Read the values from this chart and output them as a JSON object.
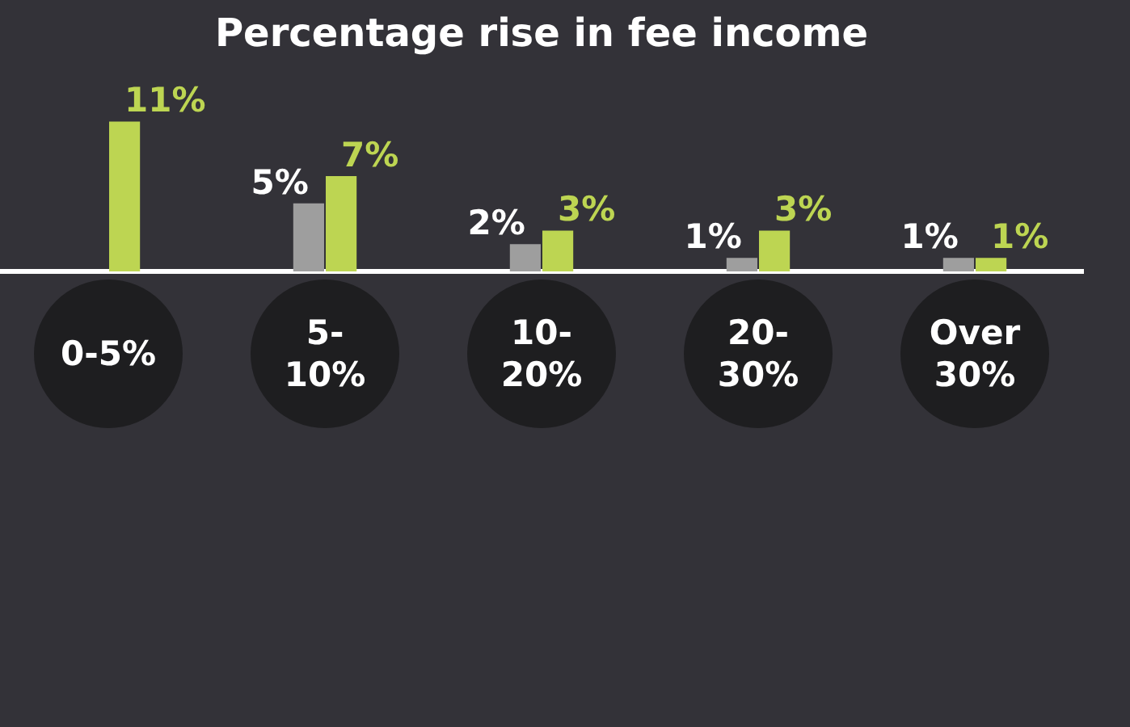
{
  "chart_data": {
    "type": "bar",
    "title": "Percentage rise in fee income",
    "categories": [
      "0-5%",
      "5-10%",
      "10-20%",
      "20-30%",
      "Over 30%"
    ],
    "series": [
      {
        "color": "#9e9e9e",
        "values": [
          null,
          5,
          2,
          1,
          1
        ],
        "value_labels": [
          null,
          "5%",
          "2%",
          "1%",
          "1%"
        ]
      },
      {
        "color": "#bdd552",
        "values": [
          11,
          7,
          3,
          3,
          1
        ],
        "value_labels": [
          "11%",
          "7%",
          "3%",
          "3%",
          "1%"
        ]
      }
    ],
    "grid": false,
    "legend": false
  }
}
